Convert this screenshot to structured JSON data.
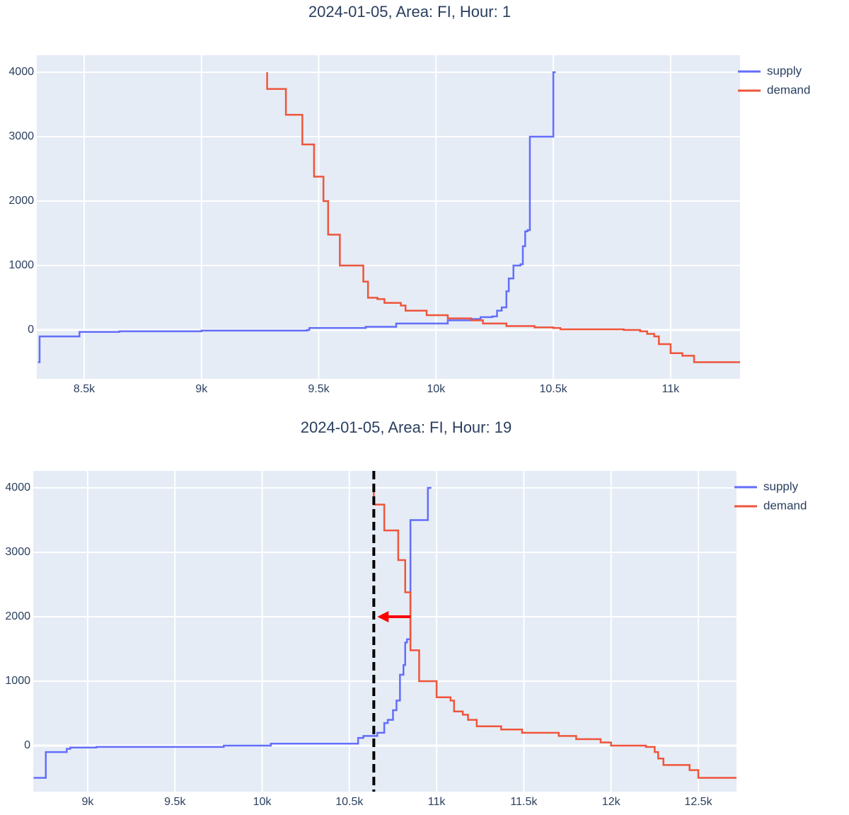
{
  "chart_data": [
    {
      "type": "line",
      "title": "2024-01-05, Area: FI, Hour: 1",
      "line_shape": "hv",
      "grid": true,
      "legend": "top-right-outside",
      "xlim": [
        8298,
        11296
      ],
      "ylim": [
        -758,
        4264
      ],
      "xticks": [
        {
          "value": 8500,
          "label": "8.5k"
        },
        {
          "value": 9000,
          "label": "9k"
        },
        {
          "value": 9500,
          "label": "9.5k"
        },
        {
          "value": 10000,
          "label": "10k"
        },
        {
          "value": 10500,
          "label": "10.5k"
        },
        {
          "value": 11000,
          "label": "11k"
        }
      ],
      "yticks": [
        0,
        1000,
        2000,
        3000,
        4000
      ],
      "series": [
        {
          "name": "supply",
          "color": "#636efa",
          "x": [
            8303,
            8310,
            8350,
            8480,
            8650,
            9000,
            9450,
            9460,
            9700,
            9830,
            9920,
            10050,
            10150,
            10190,
            10240,
            10260,
            10280,
            10300,
            10310,
            10330,
            10360,
            10370,
            10380,
            10390,
            10400,
            10500,
            10510
          ],
          "values": [
            -500,
            -100,
            -100,
            -30,
            -20,
            -10,
            0,
            30,
            50,
            100,
            100,
            150,
            170,
            200,
            210,
            300,
            350,
            600,
            800,
            1000,
            1020,
            1300,
            1530,
            1550,
            3000,
            4000,
            4000
          ]
        },
        {
          "name": "demand",
          "color": "#ef553b",
          "x": [
            9280,
            9280,
            9360,
            9430,
            9480,
            9520,
            9540,
            9590,
            9690,
            9710,
            9750,
            9780,
            9850,
            9870,
            9960,
            10050,
            10150,
            10200,
            10300,
            10420,
            10500,
            10530,
            10800,
            10870,
            10900,
            10930,
            10950,
            11000,
            11050,
            11100,
            11296
          ],
          "values": [
            4000,
            3740,
            3340,
            2880,
            2380,
            2000,
            1480,
            1000,
            750,
            500,
            480,
            420,
            380,
            300,
            230,
            180,
            150,
            100,
            60,
            40,
            30,
            10,
            0,
            -20,
            -60,
            -100,
            -220,
            -360,
            -400,
            -500,
            -500
          ]
        }
      ]
    },
    {
      "type": "line",
      "title": "2024-01-05, Area: FI, Hour: 19",
      "line_shape": "hv",
      "grid": true,
      "legend": "top-right-outside",
      "xlim": [
        8688,
        12719
      ],
      "ylim": [
        -714,
        4264
      ],
      "xticks": [
        {
          "value": 9000,
          "label": "9k"
        },
        {
          "value": 9500,
          "label": "9.5k"
        },
        {
          "value": 10000,
          "label": "10k"
        },
        {
          "value": 10500,
          "label": "10.5k"
        },
        {
          "value": 11000,
          "label": "11k"
        },
        {
          "value": 11500,
          "label": "11.5k"
        },
        {
          "value": 12000,
          "label": "12k"
        },
        {
          "value": 12500,
          "label": "12.5k"
        }
      ],
      "yticks": [
        0,
        1000,
        2000,
        3000,
        4000
      ],
      "series": [
        {
          "name": "supply",
          "color": "#636efa",
          "x": [
            8690,
            8760,
            8760,
            8880,
            8900,
            9050,
            9780,
            10050,
            10550,
            10580,
            10660,
            10660,
            10700,
            10720,
            10750,
            10770,
            10790,
            10810,
            10820,
            10830,
            10850,
            10950,
            10950,
            10970
          ],
          "values": [
            -500,
            -500,
            -100,
            -50,
            -30,
            -20,
            0,
            30,
            120,
            150,
            150,
            200,
            350,
            400,
            550,
            700,
            1100,
            1250,
            1600,
            1650,
            3500,
            3500,
            4000,
            4000
          ]
        },
        {
          "name": "demand",
          "color": "#ef553b",
          "x": [
            10640,
            10640,
            10700,
            10780,
            10820,
            10850,
            10850,
            10900,
            11000,
            11080,
            11100,
            11150,
            11180,
            11230,
            11370,
            11490,
            11700,
            11800,
            11940,
            12000,
            12200,
            12250,
            12270,
            12300,
            12450,
            12500,
            12719
          ],
          "values": [
            4000,
            3740,
            3340,
            2880,
            2380,
            2000,
            1480,
            1000,
            750,
            700,
            530,
            480,
            400,
            300,
            250,
            200,
            150,
            100,
            50,
            0,
            -20,
            -100,
            -200,
            -300,
            -380,
            -500,
            -500
          ]
        }
      ],
      "vline": {
        "x": 10640,
        "color": "#000000"
      },
      "arrow": {
        "x0": 10850,
        "x1": 10660,
        "y": 2000,
        "color": "#ff0000"
      }
    }
  ]
}
